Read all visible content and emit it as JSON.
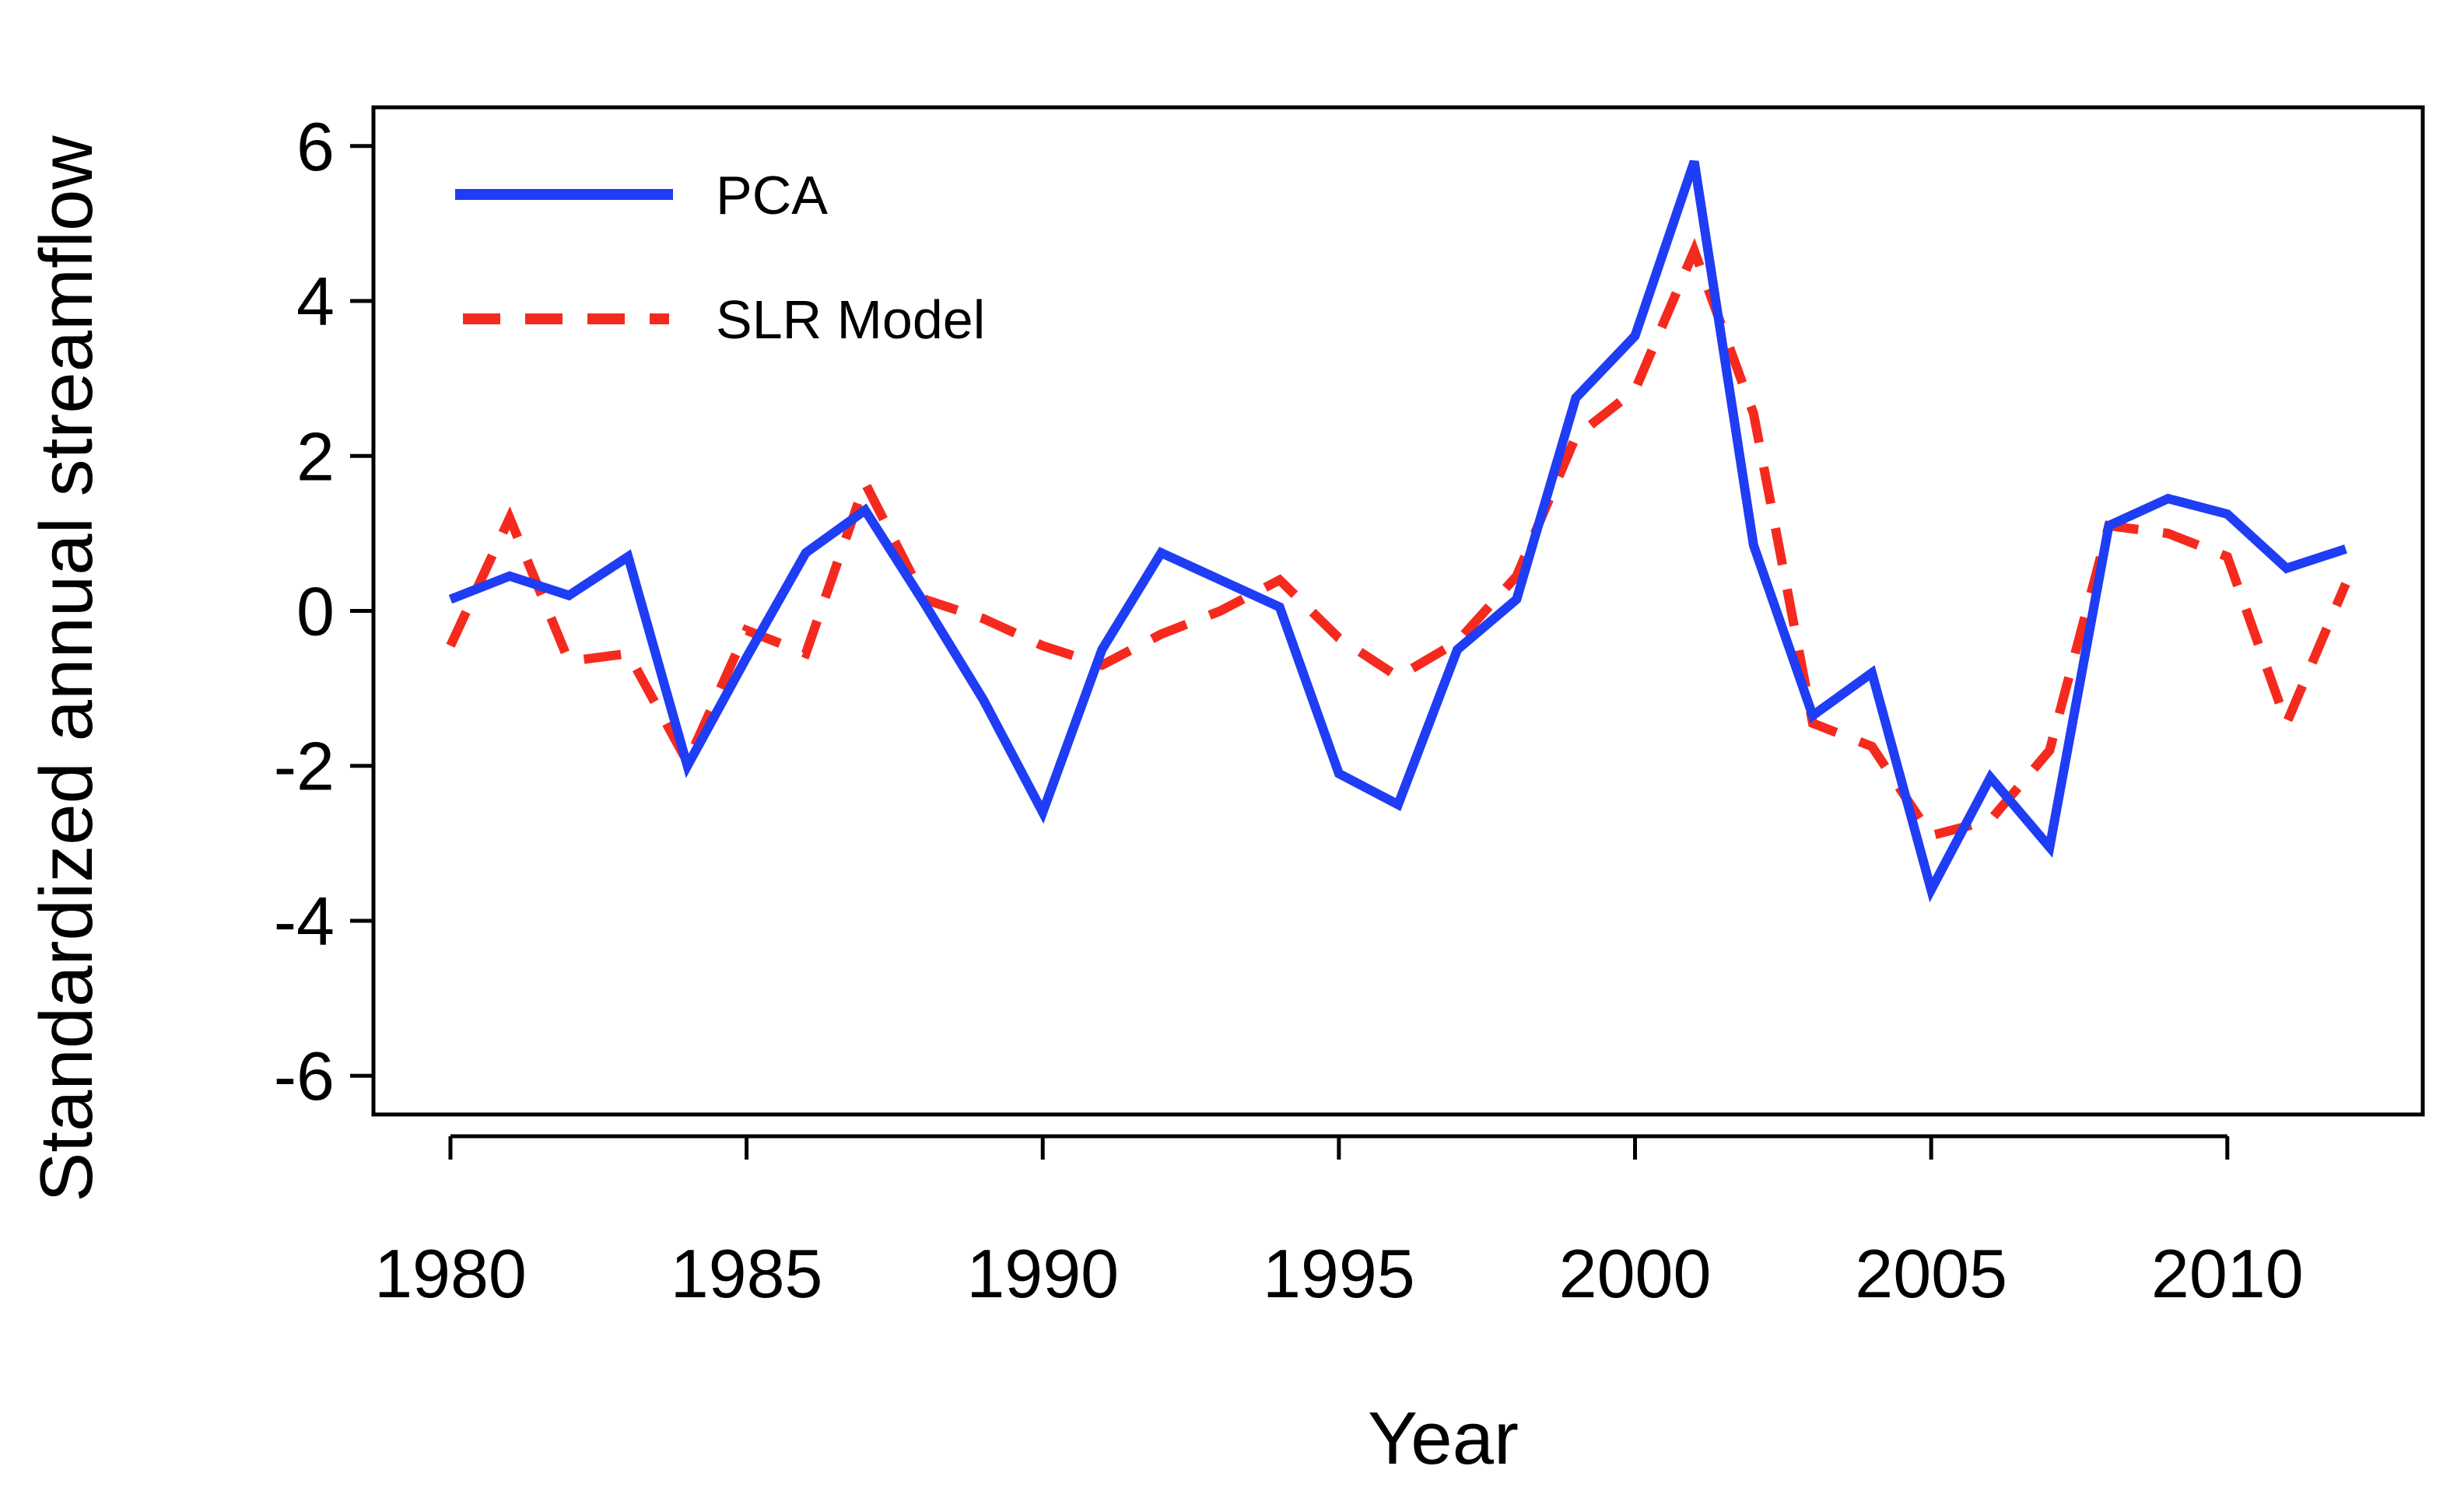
{
  "chart_data": {
    "type": "line",
    "title": "",
    "xlabel": "Year",
    "ylabel": "Standardized annual streamflow",
    "xlim": [
      1978.7,
      2013.3
    ],
    "ylim": [
      -6.5,
      6.5
    ],
    "x_ticks": [
      1980,
      1985,
      1990,
      1995,
      2000,
      2005,
      2010
    ],
    "y_ticks": [
      6,
      4,
      2,
      0,
      -2,
      -4,
      -6
    ],
    "x_tick_labels": [
      "1980",
      "1985",
      "1990",
      "1995",
      "2000",
      "2005",
      "2010"
    ],
    "y_tick_labels": [
      "6",
      "4",
      "2",
      "0",
      "-2",
      "-4",
      "-6"
    ],
    "grid": false,
    "legend_position": "top-left",
    "x": [
      1980,
      1981,
      1982,
      1983,
      1984,
      1985,
      1986,
      1987,
      1988,
      1989,
      1990,
      1991,
      1992,
      1993,
      1994,
      1995,
      1996,
      1997,
      1998,
      1999,
      2000,
      2001,
      2002,
      2003,
      2004,
      2005,
      2006,
      2007,
      2008,
      2009,
      2010,
      2011,
      2012
    ],
    "series": [
      {
        "name": "PCA",
        "color": "#1f3df5",
        "style": "solid",
        "values": [
          0.15,
          0.45,
          0.2,
          0.7,
          -2.0,
          -0.6,
          0.75,
          1.3,
          0.1,
          -1.15,
          -2.6,
          -0.5,
          0.75,
          0.4,
          0.05,
          -2.1,
          -2.5,
          -0.5,
          0.15,
          2.75,
          3.55,
          5.8,
          0.85,
          -1.35,
          -0.8,
          -3.6,
          -2.15,
          -3.05,
          1.1,
          1.45,
          1.25,
          0.55,
          0.8
        ]
      },
      {
        "name": "SLR Model",
        "color": "#f52a1e",
        "style": "dashed",
        "values": [
          -0.45,
          1.2,
          -0.65,
          -0.55,
          -1.95,
          -0.25,
          -0.55,
          1.65,
          0.15,
          -0.1,
          -0.45,
          -0.7,
          -0.3,
          0.0,
          0.4,
          -0.35,
          -0.85,
          -0.4,
          0.45,
          2.25,
          2.85,
          4.65,
          2.55,
          -1.45,
          -1.75,
          -2.9,
          -2.7,
          -1.8,
          1.1,
          1.0,
          0.7,
          -1.45,
          0.35
        ]
      }
    ]
  }
}
